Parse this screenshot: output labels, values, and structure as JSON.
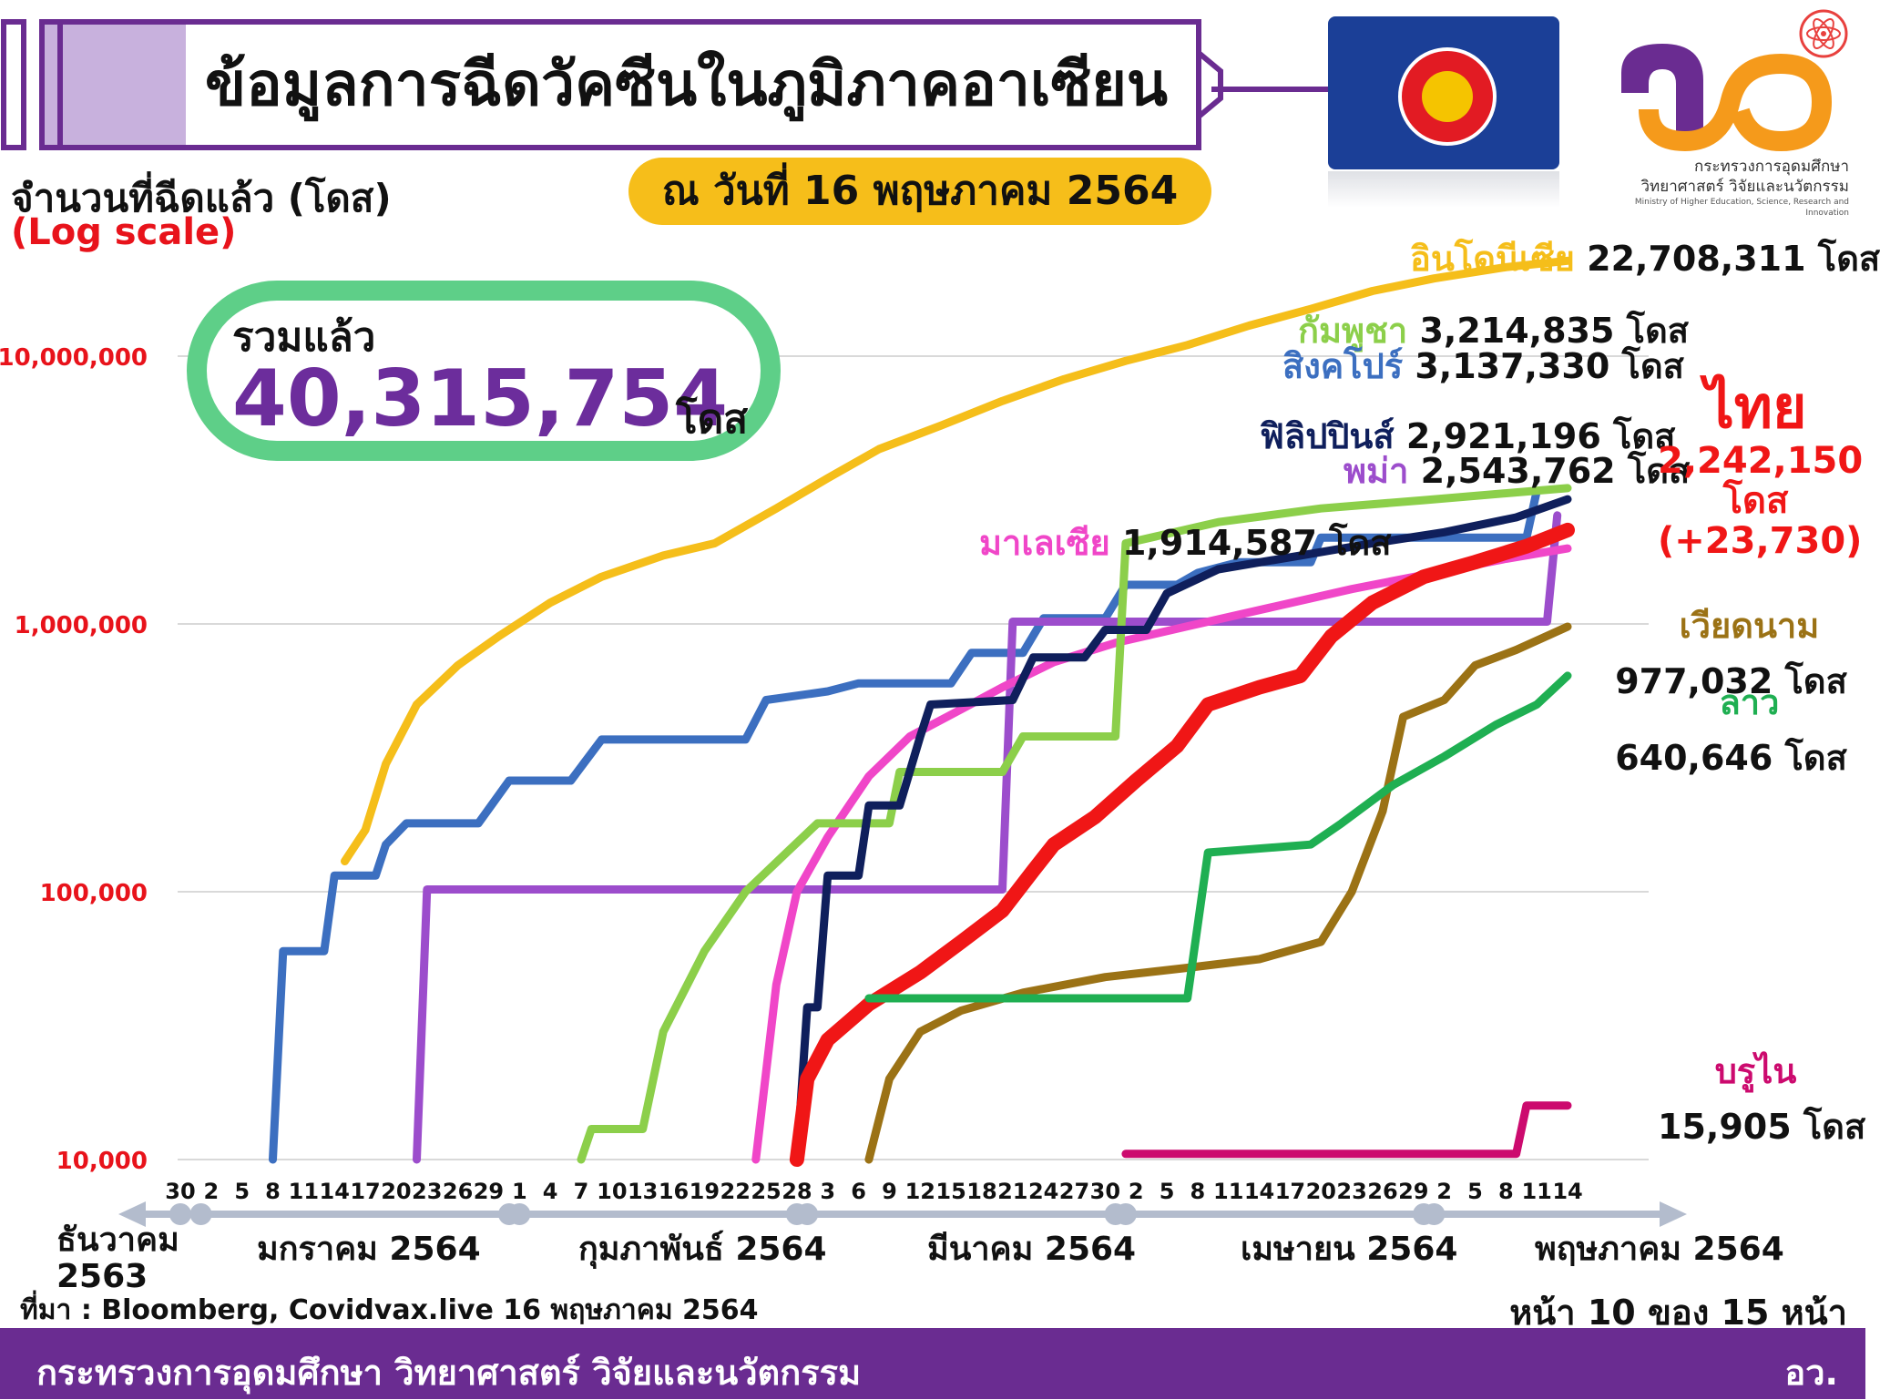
{
  "header": {
    "title": "ข้อมูลการฉีดวัคซีนในภูมิภาคอาเซียน",
    "as_of": "ณ วันที่ 16 พฤษภาคม 2564"
  },
  "logo": {
    "org_line1": "กระทรวงการอุดมศึกษา",
    "org_line2": "วิทยาศาสตร์ วิจัยและนวัตกรรม",
    "org_en": "Ministry of Higher Education, Science, Research and Innovation",
    "colors": {
      "purple": "#6a2c91",
      "orange": "#f59a1b"
    }
  },
  "total": {
    "label": "รวมแล้ว",
    "value": "40,315,754",
    "unit": "โดส"
  },
  "footer": {
    "source": "ที่มา : Bloomberg, Covidvax.live 16 พฤษภาคม 2564",
    "page": "หน้า 10 ของ 15 หน้า",
    "ministry": "กระทรวงการอุดมศึกษา วิทยาศาสตร์ วิจัยและนวัตกรรม",
    "abbr": "อว."
  },
  "labels": {
    "indonesia": {
      "name": "อินโดนีเซีย",
      "value": "22,708,311 โดส",
      "color": "#f5be1a"
    },
    "cambodia": {
      "name": "กัมพูชา",
      "value": "3,214,835 โดส",
      "color": "#8ccf4a"
    },
    "singapore": {
      "name": "สิงคโปร์",
      "value": "3,137,330 โดส",
      "color": "#3c6fc0"
    },
    "philippines": {
      "name": "ฟิลิปปินส์",
      "value": "2,921,196 โดส",
      "color": "#0f1f5c"
    },
    "myanmar": {
      "name": "พม่า",
      "value": "2,543,762 โดส",
      "color": "#9c4dcc"
    },
    "thailand": {
      "name": "ไทย",
      "value": "2,242,150",
      "unit": "โดส",
      "delta": "(+23,730)",
      "color": "#f01616"
    },
    "malaysia": {
      "name": "มาเลเซีย",
      "value": "1,914,587 โดส",
      "color": "#f046c8"
    },
    "vietnam": {
      "name": "เวียดนาม",
      "value": "977,032 โดส",
      "color": "#9b7215"
    },
    "laos": {
      "name": "ลาว",
      "value": "640,646 โดส",
      "color": "#1faf52"
    },
    "brunei": {
      "name": "บรูไน",
      "value": "15,905 โดส",
      "color": "#cc0a6e"
    }
  },
  "chart_data": {
    "type": "line",
    "title": "ข้อมูลการฉีดวัคซีนในภูมิภาคอาเซียน",
    "ylabel": "จำนวนที่ฉีดแล้ว (โดส)",
    "ylabel_note": "(Log scale)",
    "yscale": "log",
    "ylim": [
      10000,
      25000000
    ],
    "y_ticks": [
      {
        "value": 10000,
        "label": "10,000"
      },
      {
        "value": 100000,
        "label": "100,000"
      },
      {
        "value": 1000000,
        "label": "1,000,000"
      },
      {
        "value": 10000000,
        "label": "10,000,000"
      }
    ],
    "x_range": [
      "2020-12-30",
      "2021-05-16"
    ],
    "x_tick_labels": [
      "30",
      "2",
      "5",
      "8",
      "11",
      "14",
      "17",
      "20",
      "23",
      "26",
      "29",
      "1",
      "4",
      "7",
      "10",
      "13",
      "16",
      "19",
      "22",
      "25",
      "28",
      "3",
      "6",
      "9",
      "12",
      "15",
      "18",
      "21",
      "24",
      "27",
      "30",
      "2",
      "5",
      "8",
      "11",
      "14",
      "17",
      "20",
      "23",
      "26",
      "29",
      "2",
      "5",
      "8",
      "11",
      "14"
    ],
    "months": [
      {
        "label": "ธันวาคม",
        "sub": "2563"
      },
      {
        "label": "มกราคม 2564"
      },
      {
        "label": "กุมภาพันธ์ 2564"
      },
      {
        "label": "มีนาคม 2564"
      },
      {
        "label": "เมษายน 2564"
      },
      {
        "label": "พฤษภาคม 2564"
      }
    ],
    "grid": true,
    "series": [
      {
        "name": "อินโดนีเซีย",
        "color": "#f5be1a",
        "points": [
          [
            "2021-01-15",
            130000
          ],
          [
            "2021-01-17",
            170000
          ],
          [
            "2021-01-19",
            300000
          ],
          [
            "2021-01-22",
            500000
          ],
          [
            "2021-01-26",
            700000
          ],
          [
            "2021-01-30",
            900000
          ],
          [
            "2021-02-04",
            1200000
          ],
          [
            "2021-02-09",
            1500000
          ],
          [
            "2021-02-15",
            1800000
          ],
          [
            "2021-02-20",
            2000000
          ],
          [
            "2021-02-26",
            2700000
          ],
          [
            "2021-03-03",
            3500000
          ],
          [
            "2021-03-08",
            4500000
          ],
          [
            "2021-03-14",
            5500000
          ],
          [
            "2021-03-20",
            6800000
          ],
          [
            "2021-03-26",
            8200000
          ],
          [
            "2021-04-01",
            9600000
          ],
          [
            "2021-04-07",
            11000000
          ],
          [
            "2021-04-13",
            13000000
          ],
          [
            "2021-04-19",
            15000000
          ],
          [
            "2021-04-25",
            17500000
          ],
          [
            "2021-05-01",
            19500000
          ],
          [
            "2021-05-08",
            21500000
          ],
          [
            "2021-05-14",
            22708311
          ]
        ]
      },
      {
        "name": "สิงคโปร์",
        "color": "#3c6fc0",
        "points": [
          [
            "2021-01-08",
            10000
          ],
          [
            "2021-01-09",
            60000
          ],
          [
            "2021-01-13",
            60000
          ],
          [
            "2021-01-14",
            115000
          ],
          [
            "2021-01-18",
            115000
          ],
          [
            "2021-01-19",
            150000
          ],
          [
            "2021-01-21",
            180000
          ],
          [
            "2021-01-28",
            180000
          ],
          [
            "2021-01-31",
            260000
          ],
          [
            "2021-02-06",
            260000
          ],
          [
            "2021-02-09",
            370000
          ],
          [
            "2021-02-23",
            370000
          ],
          [
            "2021-02-25",
            520000
          ],
          [
            "2021-03-03",
            560000
          ],
          [
            "2021-03-06",
            600000
          ],
          [
            "2021-03-15",
            600000
          ],
          [
            "2021-03-17",
            780000
          ],
          [
            "2021-03-22",
            780000
          ],
          [
            "2021-03-24",
            1050000
          ],
          [
            "2021-03-30",
            1050000
          ],
          [
            "2021-04-01",
            1400000
          ],
          [
            "2021-04-06",
            1400000
          ],
          [
            "2021-04-08",
            1550000
          ],
          [
            "2021-04-12",
            1700000
          ],
          [
            "2021-04-19",
            1700000
          ],
          [
            "2021-04-20",
            2100000
          ],
          [
            "2021-05-10",
            2100000
          ],
          [
            "2021-05-11",
            3137330
          ]
        ]
      },
      {
        "name": "พม่า",
        "color": "#9c4dcc",
        "points": [
          [
            "2021-01-22",
            10000
          ],
          [
            "2021-01-23",
            102000
          ],
          [
            "2021-03-20",
            102000
          ],
          [
            "2021-03-21",
            1020000
          ],
          [
            "2021-05-12",
            1020000
          ],
          [
            "2021-05-13",
            2543762
          ]
        ]
      },
      {
        "name": "มาเลเซีย",
        "color": "#f046c8",
        "points": [
          [
            "2021-02-24",
            10000
          ],
          [
            "2021-02-26",
            45000
          ],
          [
            "2021-02-28",
            100000
          ],
          [
            "2021-03-03",
            160000
          ],
          [
            "2021-03-07",
            270000
          ],
          [
            "2021-03-11",
            380000
          ],
          [
            "2021-03-16",
            480000
          ],
          [
            "2021-03-20",
            580000
          ],
          [
            "2021-03-25",
            720000
          ],
          [
            "2021-03-31",
            850000
          ],
          [
            "2021-04-07",
            980000
          ],
          [
            "2021-04-15",
            1150000
          ],
          [
            "2021-04-23",
            1350000
          ],
          [
            "2021-05-01",
            1550000
          ],
          [
            "2021-05-08",
            1750000
          ],
          [
            "2021-05-14",
            1914587
          ]
        ]
      },
      {
        "name": "กัมพูชา",
        "color": "#8ccf4a",
        "points": [
          [
            "2021-02-07",
            10000
          ],
          [
            "2021-02-08",
            13000
          ],
          [
            "2021-02-13",
            13000
          ],
          [
            "2021-02-15",
            30000
          ],
          [
            "2021-02-19",
            60000
          ],
          [
            "2021-02-23",
            100000
          ],
          [
            "2021-02-27",
            140000
          ],
          [
            "2021-03-02",
            180000
          ],
          [
            "2021-03-09",
            180000
          ],
          [
            "2021-03-10",
            280000
          ],
          [
            "2021-03-20",
            280000
          ],
          [
            "2021-03-22",
            380000
          ],
          [
            "2021-03-31",
            380000
          ],
          [
            "2021-04-01",
            2000000
          ],
          [
            "2021-04-10",
            2400000
          ],
          [
            "2021-04-20",
            2700000
          ],
          [
            "2021-04-30",
            2900000
          ],
          [
            "2021-05-14",
            3214835
          ]
        ]
      },
      {
        "name": "ฟิลิปปินส์",
        "color": "#0f1f5c",
        "points": [
          [
            "2021-02-28",
            10000
          ],
          [
            "2021-03-01",
            37000
          ],
          [
            "2021-03-02",
            37000
          ],
          [
            "2021-03-03",
            115000
          ],
          [
            "2021-03-06",
            115000
          ],
          [
            "2021-03-07",
            210000
          ],
          [
            "2021-03-10",
            210000
          ],
          [
            "2021-03-12",
            380000
          ],
          [
            "2021-03-13",
            500000
          ],
          [
            "2021-03-21",
            520000
          ],
          [
            "2021-03-23",
            750000
          ],
          [
            "2021-03-28",
            750000
          ],
          [
            "2021-03-30",
            950000
          ],
          [
            "2021-04-03",
            950000
          ],
          [
            "2021-04-05",
            1300000
          ],
          [
            "2021-04-10",
            1600000
          ],
          [
            "2021-04-18",
            1800000
          ],
          [
            "2021-04-25",
            2000000
          ],
          [
            "2021-05-02",
            2200000
          ],
          [
            "2021-05-09",
            2500000
          ],
          [
            "2021-05-14",
            2921196
          ]
        ]
      },
      {
        "name": "ไทย",
        "color": "#f01616",
        "points": [
          [
            "2021-02-28",
            10000
          ],
          [
            "2021-03-01",
            20000
          ],
          [
            "2021-03-03",
            28000
          ],
          [
            "2021-03-07",
            38000
          ],
          [
            "2021-03-12",
            50000
          ],
          [
            "2021-03-16",
            65000
          ],
          [
            "2021-03-20",
            85000
          ],
          [
            "2021-03-23",
            120000
          ],
          [
            "2021-03-25",
            150000
          ],
          [
            "2021-03-29",
            190000
          ],
          [
            "2021-04-02",
            260000
          ],
          [
            "2021-04-06",
            350000
          ],
          [
            "2021-04-09",
            500000
          ],
          [
            "2021-04-14",
            580000
          ],
          [
            "2021-04-18",
            640000
          ],
          [
            "2021-04-21",
            900000
          ],
          [
            "2021-04-25",
            1200000
          ],
          [
            "2021-04-30",
            1500000
          ],
          [
            "2021-05-05",
            1700000
          ],
          [
            "2021-05-10",
            1950000
          ],
          [
            "2021-05-14",
            2242150
          ]
        ]
      },
      {
        "name": "เวียดนาม",
        "color": "#9b7215",
        "points": [
          [
            "2021-03-07",
            10000
          ],
          [
            "2021-03-09",
            20000
          ],
          [
            "2021-03-12",
            30000
          ],
          [
            "2021-03-16",
            36000
          ],
          [
            "2021-03-22",
            42000
          ],
          [
            "2021-03-30",
            48000
          ],
          [
            "2021-04-07",
            52000
          ],
          [
            "2021-04-14",
            56000
          ],
          [
            "2021-04-20",
            65000
          ],
          [
            "2021-04-23",
            100000
          ],
          [
            "2021-04-26",
            200000
          ],
          [
            "2021-04-28",
            450000
          ],
          [
            "2021-05-02",
            520000
          ],
          [
            "2021-05-05",
            700000
          ],
          [
            "2021-05-09",
            800000
          ],
          [
            "2021-05-14",
            977032
          ]
        ]
      },
      {
        "name": "ลาว",
        "color": "#1faf52",
        "points": [
          [
            "2021-03-07",
            40000
          ],
          [
            "2021-04-07",
            40000
          ],
          [
            "2021-04-09",
            140000
          ],
          [
            "2021-04-19",
            150000
          ],
          [
            "2021-04-22",
            180000
          ],
          [
            "2021-04-27",
            250000
          ],
          [
            "2021-05-02",
            320000
          ],
          [
            "2021-05-07",
            420000
          ],
          [
            "2021-05-11",
            500000
          ],
          [
            "2021-05-14",
            640646
          ]
        ]
      },
      {
        "name": "บรูไน",
        "color": "#cc0a6e",
        "points": [
          [
            "2021-04-01",
            10500
          ],
          [
            "2021-05-09",
            10500
          ],
          [
            "2021-05-10",
            15905
          ],
          [
            "2021-05-14",
            15905
          ]
        ]
      }
    ]
  }
}
